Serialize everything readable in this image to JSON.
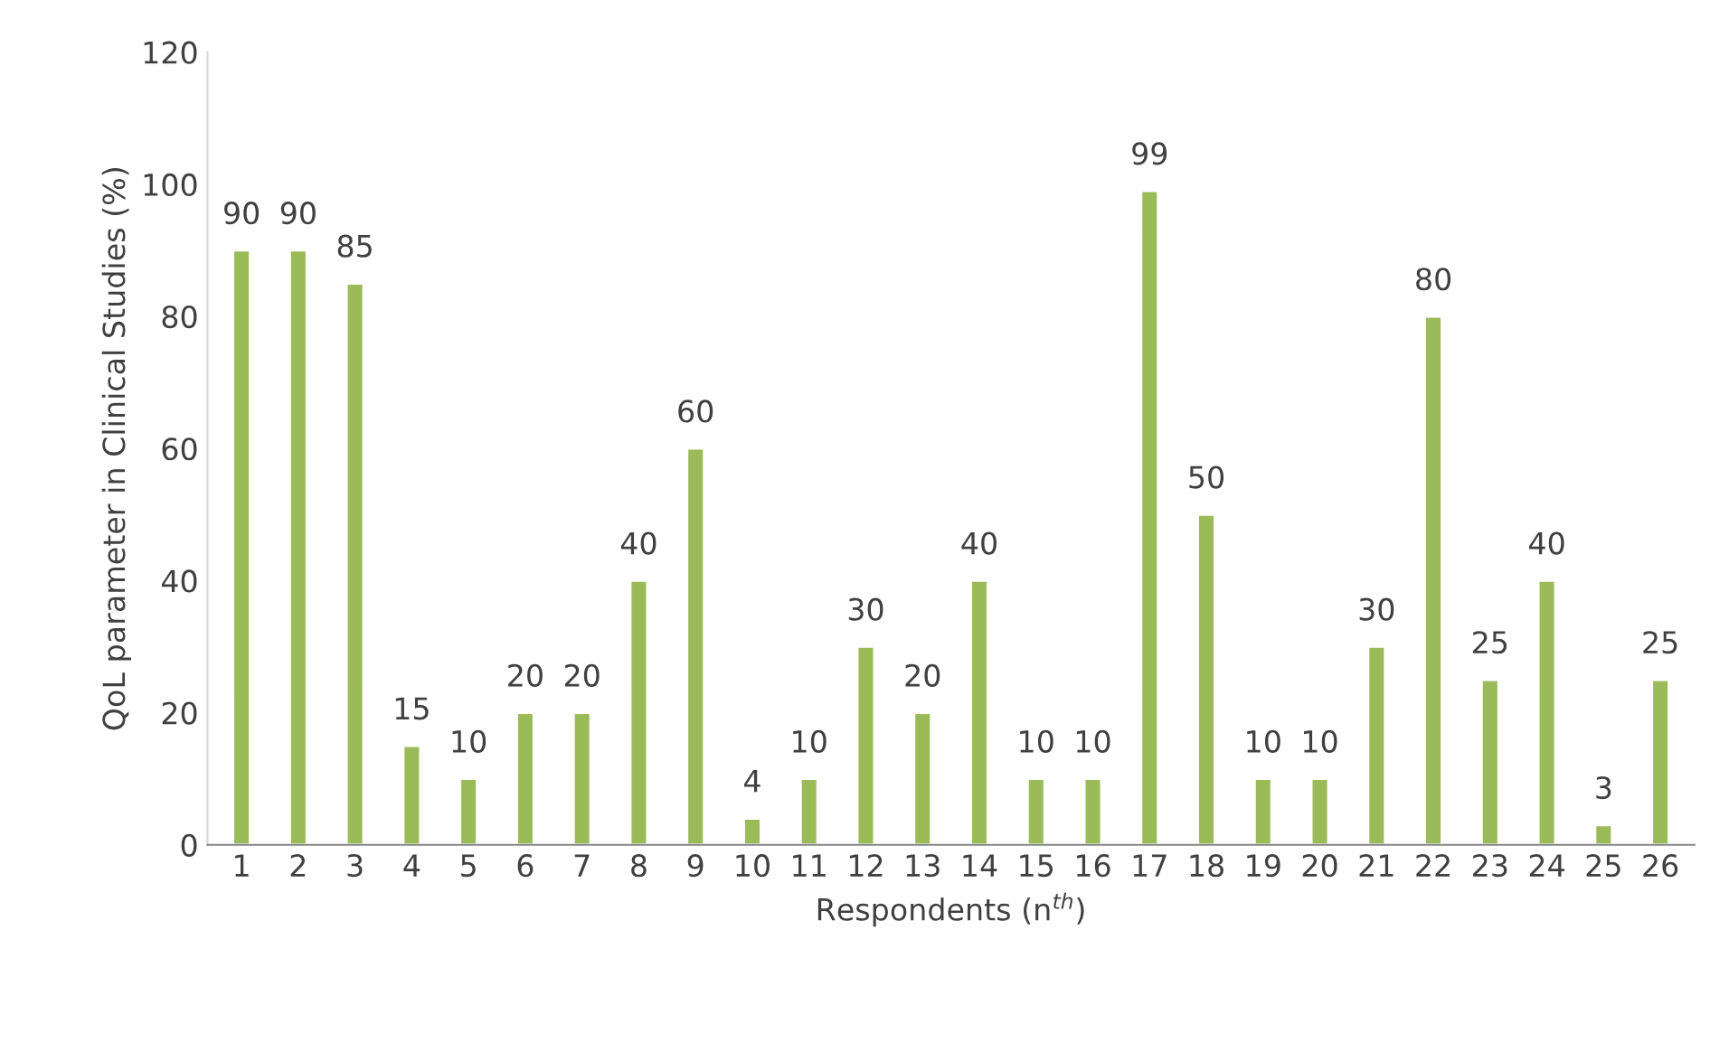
{
  "chart_data": {
    "type": "bar",
    "xlabel": "Respondents (n$^{th}$)",
    "ylabel": "QoL parameter in Clinical Studies (%)",
    "categories": [
      "1",
      "2",
      "3",
      "4",
      "5",
      "6",
      "7",
      "8",
      "9",
      "10",
      "11",
      "12",
      "13",
      "14",
      "15",
      "16",
      "17",
      "18",
      "19",
      "20",
      "21",
      "22",
      "23",
      "24",
      "25",
      "26"
    ],
    "values": [
      90,
      90,
      85,
      15,
      10,
      20,
      20,
      40,
      60,
      4,
      10,
      30,
      20,
      40,
      10,
      10,
      99,
      50,
      10,
      10,
      30,
      80,
      25,
      40,
      3,
      25
    ],
    "color": "#9bbb59",
    "ylim": [
      0,
      120
    ],
    "yticks": [
      0,
      20,
      40,
      60,
      80,
      100,
      120
    ],
    "data_labels": true,
    "grid": false,
    "legend": false
  }
}
